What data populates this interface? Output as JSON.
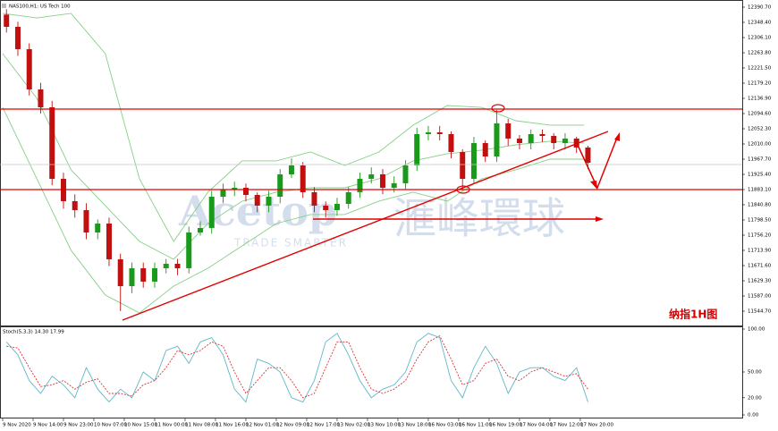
{
  "chart_data": [
    {
      "type": "candlestick",
      "title": "NAS100,H1: US Tech 100",
      "x": [
        1,
        4,
        7,
        10,
        13,
        16,
        19,
        22,
        25,
        28,
        31,
        34,
        37,
        40,
        43,
        46,
        49,
        52,
        55,
        58,
        61,
        64,
        67,
        70,
        73,
        76,
        79,
        82,
        85,
        88,
        91,
        94,
        97,
        100,
        103,
        106,
        109,
        112,
        115,
        118,
        121,
        124,
        127,
        130,
        133,
        136,
        139,
        142,
        145,
        148,
        151,
        154
      ],
      "open": [
        12370.0,
        12336.0,
        12273.8,
        12161.8,
        12112.0,
        11913.0,
        11850.8,
        11825.9,
        11763.7,
        11788.6,
        11689.1,
        11614.4,
        11664.2,
        11626.9,
        11664.2,
        11676.6,
        11664.2,
        11763.7,
        11776.2,
        11863.2,
        11883.1,
        11888.1,
        11868.2,
        11838.4,
        11863.2,
        11925.4,
        11950.3,
        11875.7,
        11838.4,
        11825.9,
        11843.3,
        11875.7,
        11913.0,
        11925.4,
        11888.1,
        11900.6,
        11950.3,
        12037.4,
        12042.4,
        12037.4,
        11987.6,
        11913.0,
        12012.5,
        11975.2,
        12067.3,
        12025.0,
        12012.5,
        12037.4,
        12032.4,
        12012.5,
        12025.0,
        12000.1
      ],
      "high": [
        12385,
        12350,
        12290,
        12180,
        12130,
        11930,
        11870,
        11845,
        11800,
        11805,
        11705,
        11680,
        11680,
        11680,
        11690,
        11690,
        11780,
        11795,
        11880,
        11900,
        11905,
        11900,
        11875,
        11880,
        11940,
        11970,
        11960,
        11890,
        11850,
        11860,
        11890,
        11930,
        11945,
        11940,
        11920,
        11965,
        12055,
        12060,
        12060,
        12045,
        11995,
        12030,
        12020,
        12105,
        12080,
        12035,
        12050,
        12050,
        12040,
        12040,
        12030,
        12005
      ],
      "low": [
        12320,
        12255,
        12145,
        12095,
        11895,
        11830,
        11805,
        11745,
        11745,
        11670,
        11545,
        11595,
        11610,
        11610,
        11650,
        11645,
        11650,
        11755,
        11760,
        11845,
        11865,
        11850,
        11820,
        11820,
        11845,
        11915,
        11860,
        11820,
        11805,
        11810,
        11830,
        11860,
        11900,
        11870,
        11875,
        11885,
        11935,
        12020,
        12020,
        11970,
        11880,
        11900,
        11960,
        11960,
        12005,
        11995,
        11995,
        12015,
        11995,
        11995,
        11985,
        11940
      ],
      "close": [
        12336.0,
        12273.8,
        12161.8,
        12112.0,
        11913.0,
        11850.8,
        11825.9,
        11763.7,
        11788.6,
        11689.1,
        11614.4,
        11664.2,
        11626.9,
        11664.2,
        11676.6,
        11664.2,
        11763.7,
        11776.2,
        11863.2,
        11883.1,
        11888.1,
        11868.2,
        11838.4,
        11863.2,
        11925.4,
        11950.3,
        11875.7,
        11838.4,
        11825.9,
        11843.3,
        11875.7,
        11913.0,
        11925.4,
        11888.1,
        11900.6,
        11950.3,
        12037.4,
        12042.4,
        12037.4,
        11987.6,
        11913.0,
        12012.5,
        11975.2,
        12067.3,
        12025.0,
        12012.5,
        12037.4,
        12032.4,
        12012.5,
        12025.0,
        12000.1,
        11957.8
      ],
      "up_color": "#1a9a1a",
      "down_color": "#c01010",
      "bands": {
        "color": "#86cf86",
        "x": [
          0,
          9,
          18,
          27,
          36,
          45,
          54,
          63,
          72,
          81,
          90,
          99,
          108,
          117,
          126,
          135,
          144,
          153
        ],
        "upper": [
          12373.3,
          12360.8,
          12373.3,
          12261.3,
          11913.0,
          11738.8,
          11875.7,
          11962.8,
          11962.8,
          11987.6,
          11950.3,
          11987.6,
          12062.3,
          12117.0,
          12112.0,
          12074.7,
          12062.3,
          12062.3
        ],
        "middle": [
          12261.3,
          12136.9,
          11937.9,
          11838.4,
          11738.8,
          11689.1,
          11788.6,
          11850.8,
          11875.7,
          11888.1,
          11888.1,
          11913.0,
          11962.8,
          11982.7,
          11992.6,
          12007.5,
          12017.5,
          12012.5
        ],
        "lower": [
          12112.0,
          11913.0,
          11714.0,
          11589.6,
          11539.8,
          11614.4,
          11664.2,
          11726.4,
          11788.6,
          11813.5,
          11813.5,
          11850.8,
          11875.7,
          11850.8,
          11913.0,
          11937.9,
          11967.7,
          11967.7
        ]
      },
      "xlim": [
        -0.7,
        194.6
      ],
      "ylim": [
        11502.4,
        12410.6
      ],
      "yticks": [
        {
          "value": 12390.7,
          "label": "12390.70"
        },
        {
          "value": 12348.4,
          "label": "12348.40"
        },
        {
          "value": 12306.1,
          "label": "12306.10"
        },
        {
          "value": 12263.8,
          "label": "12263.80"
        },
        {
          "value": 12221.5,
          "label": "12221.50"
        },
        {
          "value": 12179.2,
          "label": "12179.20"
        },
        {
          "value": 12136.9,
          "label": "12136.90"
        },
        {
          "value": 12094.6,
          "label": "12094.60"
        },
        {
          "value": 12052.3,
          "label": "12052.30"
        },
        {
          "value": 12010,
          "label": "12010.00"
        },
        {
          "value": 11967.7,
          "label": "11967.70"
        },
        {
          "value": 11925.4,
          "label": "11925.40"
        },
        {
          "value": 11883.1,
          "label": "11883.10"
        },
        {
          "value": 11840.8,
          "label": "11840.80"
        },
        {
          "value": 11798.5,
          "label": "11798.50"
        },
        {
          "value": 11756.2,
          "label": "11756.20"
        },
        {
          "value": 11713.9,
          "label": "11713.90"
        },
        {
          "value": 11671.6,
          "label": "11671.60"
        },
        {
          "value": 11629.3,
          "label": "11629.30"
        },
        {
          "value": 11587,
          "label": "11587.00"
        },
        {
          "value": 11544.7,
          "label": "11544.70"
        }
      ],
      "annotation": "纳指1H图",
      "watermark": [
        "Acetop",
        "滙峰環球",
        "TRADE SMARTER"
      ]
    },
    {
      "type": "line",
      "title": "Stoch(5,3,3) 14.30 17.99",
      "x": [
        1,
        4,
        7,
        10,
        13,
        16,
        19,
        22,
        25,
        28,
        31,
        34,
        37,
        40,
        43,
        46,
        49,
        52,
        55,
        58,
        61,
        64,
        67,
        70,
        73,
        76,
        79,
        82,
        85,
        88,
        91,
        94,
        97,
        100,
        103,
        106,
        109,
        112,
        115,
        118,
        121,
        124,
        127,
        130,
        133,
        136,
        139,
        142,
        145,
        148,
        151,
        154
      ],
      "series": [
        {
          "color": "#5fb8c8",
          "dashed": false,
          "values": [
            85,
            70,
            40,
            25,
            45,
            35,
            20,
            55,
            30,
            15,
            30,
            20,
            50,
            40,
            75,
            80,
            60,
            85,
            90,
            70,
            30,
            15,
            65,
            60,
            50,
            20,
            15,
            40,
            85,
            95,
            70,
            40,
            20,
            30,
            35,
            50,
            85,
            95,
            90,
            40,
            20,
            55,
            80,
            60,
            25,
            50,
            55,
            55,
            45,
            40,
            55,
            15
          ]
        },
        {
          "color": "#e03030",
          "dashed": true,
          "values": [
            80,
            78,
            55,
            33,
            35,
            40,
            30,
            38,
            42,
            25,
            25,
            22,
            35,
            40,
            55,
            75,
            70,
            75,
            85,
            80,
            50,
            25,
            40,
            55,
            55,
            40,
            20,
            25,
            55,
            85,
            85,
            55,
            30,
            25,
            30,
            40,
            65,
            85,
            92,
            65,
            35,
            40,
            60,
            65,
            45,
            40,
            50,
            55,
            50,
            45,
            48,
            30
          ]
        }
      ],
      "xlim": [
        -0.7,
        194.6
      ],
      "ylim": [
        0,
        100
      ],
      "yticks": [
        {
          "value": 100,
          "label": "100.00"
        },
        {
          "value": 50,
          "label": "50.00"
        },
        {
          "value": 20,
          "label": "20.00"
        },
        {
          "value": 0,
          "label": "0.00"
        }
      ],
      "xticks": [
        {
          "value": 0,
          "label": "9 Nov 2020"
        },
        {
          "value": 8,
          "label": "9 Nov 14:00"
        },
        {
          "value": 16,
          "label": "9 Nov 23:00"
        },
        {
          "value": 24,
          "label": "10 Nov 07:00"
        },
        {
          "value": 32,
          "label": "10 Nov 15:00"
        },
        {
          "value": 40,
          "label": "11 Nov 00:00"
        },
        {
          "value": 48,
          "label": "11 Nov 08:00"
        },
        {
          "value": 56,
          "label": "11 Nov 16:00"
        },
        {
          "value": 64,
          "label": "12 Nov 01:00"
        },
        {
          "value": 72,
          "label": "12 Nov 09:00"
        },
        {
          "value": 80,
          "label": "12 Nov 17:00"
        },
        {
          "value": 88,
          "label": "13 Nov 02:00"
        },
        {
          "value": 96,
          "label": "13 Nov 10:00"
        },
        {
          "value": 104,
          "label": "13 Nov 18:00"
        },
        {
          "value": 112,
          "label": "16 Nov 03:00"
        },
        {
          "value": 120,
          "label": "16 Nov 11:00"
        },
        {
          "value": 128,
          "label": "16 Nov 19:00"
        },
        {
          "value": 136,
          "label": "17 Nov 04:00"
        },
        {
          "value": 144,
          "label": "17 Nov 12:00"
        },
        {
          "value": 152,
          "label": "17 Nov 20:00"
        }
      ]
    }
  ]
}
